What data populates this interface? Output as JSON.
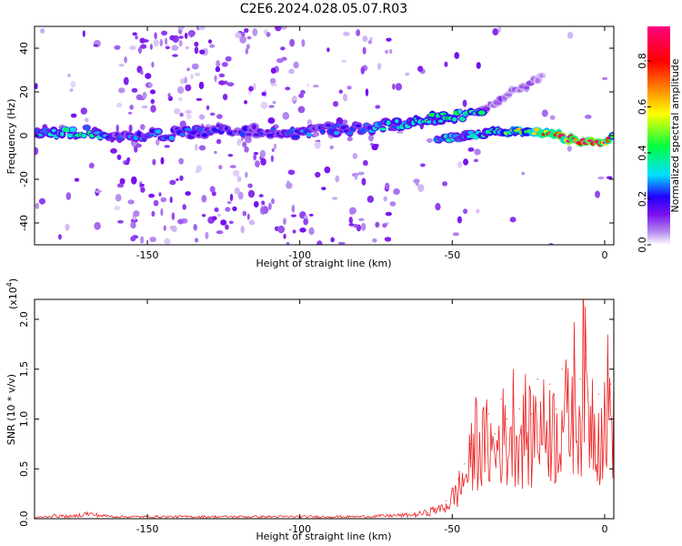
{
  "chart_data": [
    {
      "type": "heatmap",
      "title": "C2E6.2024.028.05.07.R03",
      "xlabel": "Height of straight line (km)",
      "ylabel": "Frequency (Hz)",
      "xlim": [
        -187,
        3
      ],
      "ylim": [
        -50,
        50
      ],
      "x_ticks": [
        "-150",
        "-100",
        "-50",
        "0"
      ],
      "x_tick_values": [
        -150,
        -100,
        -50,
        0
      ],
      "y_ticks": [
        "-40",
        "-20",
        "0",
        "20",
        "40"
      ],
      "y_tick_values": [
        -40,
        -20,
        0,
        20,
        40
      ],
      "grid": false,
      "colorbar": {
        "label": "Normalized spectral amplitude",
        "range": [
          0,
          0.95
        ],
        "ticks": [
          "0.0",
          "0.2",
          "0.4",
          "0.6",
          "0.8"
        ],
        "tick_values": [
          0.0,
          0.2,
          0.4,
          0.6,
          0.8
        ],
        "colormap": [
          "#ffffff",
          "#b488ee",
          "#7a10ee",
          "#2200ff",
          "#00e0ff",
          "#00ff40",
          "#ffff00",
          "#ff7f00",
          "#ff0000",
          "#ff0080"
        ]
      },
      "ridge": [
        {
          "x": -187,
          "y": 0,
          "amp": 0.3
        },
        {
          "x": -170,
          "y": 2,
          "amp": 0.35
        },
        {
          "x": -160,
          "y": 0,
          "amp": 0.25
        },
        {
          "x": -150,
          "y": 0,
          "amp": 0.25
        },
        {
          "x": -140,
          "y": 1,
          "amp": 0.25
        },
        {
          "x": -125,
          "y": 3,
          "amp": 0.2
        },
        {
          "x": -110,
          "y": 2,
          "amp": 0.2
        },
        {
          "x": -100,
          "y": 1,
          "amp": 0.25
        },
        {
          "x": -90,
          "y": 3,
          "amp": 0.25
        },
        {
          "x": -80,
          "y": 3,
          "amp": 0.28
        },
        {
          "x": -70,
          "y": 5,
          "amp": 0.32
        },
        {
          "x": -60,
          "y": 7,
          "amp": 0.4
        },
        {
          "x": -50,
          "y": 9,
          "amp": 0.4
        },
        {
          "x": -40,
          "y": 11,
          "amp": 0.35
        }
      ],
      "ridge_lower": [
        {
          "x": -55,
          "y": -2,
          "amp": 0.35
        },
        {
          "x": -45,
          "y": 0,
          "amp": 0.3
        },
        {
          "x": -35,
          "y": 2,
          "amp": 0.35
        },
        {
          "x": -25,
          "y": 2,
          "amp": 0.6
        },
        {
          "x": -15,
          "y": 0,
          "amp": 0.8
        },
        {
          "x": -8,
          "y": -3,
          "amp": 0.9
        },
        {
          "x": 0,
          "y": -3,
          "amp": 0.95
        },
        {
          "x": 3,
          "y": -1,
          "amp": 0.6
        }
      ],
      "faint_branch": [
        {
          "x": -40,
          "y": 12,
          "amp": 0.1
        },
        {
          "x": -30,
          "y": 20,
          "amp": 0.1
        },
        {
          "x": -20,
          "y": 27,
          "amp": 0.08
        }
      ]
    },
    {
      "type": "line",
      "title": "",
      "xlabel": "Height of straight line (km)",
      "ylabel": "SNR (10 * v/v)",
      "scale_label": "(x10",
      "scale_exponent": "4",
      "scale_suffix": ")",
      "xlim": [
        -187,
        3
      ],
      "ylim": [
        0,
        2.2
      ],
      "x_ticks": [
        "-150",
        "-100",
        "-50",
        "0"
      ],
      "x_tick_values": [
        -150,
        -100,
        -50,
        0
      ],
      "y_ticks": [
        "0.0",
        "0.5",
        "1.0",
        "1.5",
        "2.0"
      ],
      "y_tick_values": [
        0.0,
        0.5,
        1.0,
        1.5,
        2.0
      ],
      "grid": false,
      "series": [
        {
          "color": "#ee2222",
          "x": [
            -187,
            -180,
            -175,
            -170,
            -165,
            -160,
            -150,
            -140,
            -130,
            -120,
            -110,
            -100,
            -90,
            -80,
            -70,
            -62,
            -58,
            -55,
            -52,
            -50,
            -48,
            -46,
            -44,
            -42,
            -40,
            -38,
            -36,
            -34,
            -32,
            -30,
            -28,
            -26,
            -24,
            -22,
            -20,
            -18,
            -16,
            -14,
            -12,
            -10,
            -8,
            -7,
            -6,
            -4,
            -2,
            0,
            1,
            2,
            3
          ],
          "values": [
            0.01,
            0.03,
            0.02,
            0.05,
            0.03,
            0.02,
            0.02,
            0.02,
            0.02,
            0.02,
            0.02,
            0.02,
            0.02,
            0.02,
            0.03,
            0.04,
            0.06,
            0.1,
            0.18,
            0.28,
            0.4,
            0.55,
            0.75,
            1.15,
            0.95,
            1.05,
            0.85,
            1.2,
            1.0,
            1.35,
            1.1,
            1.25,
            1.05,
            1.4,
            1.2,
            1.35,
            1.1,
            1.5,
            1.3,
            1.7,
            1.4,
            2.2,
            1.6,
            1.4,
            1.25,
            1.3,
            1.6,
            1.35,
            1.45
          ]
        }
      ]
    }
  ]
}
